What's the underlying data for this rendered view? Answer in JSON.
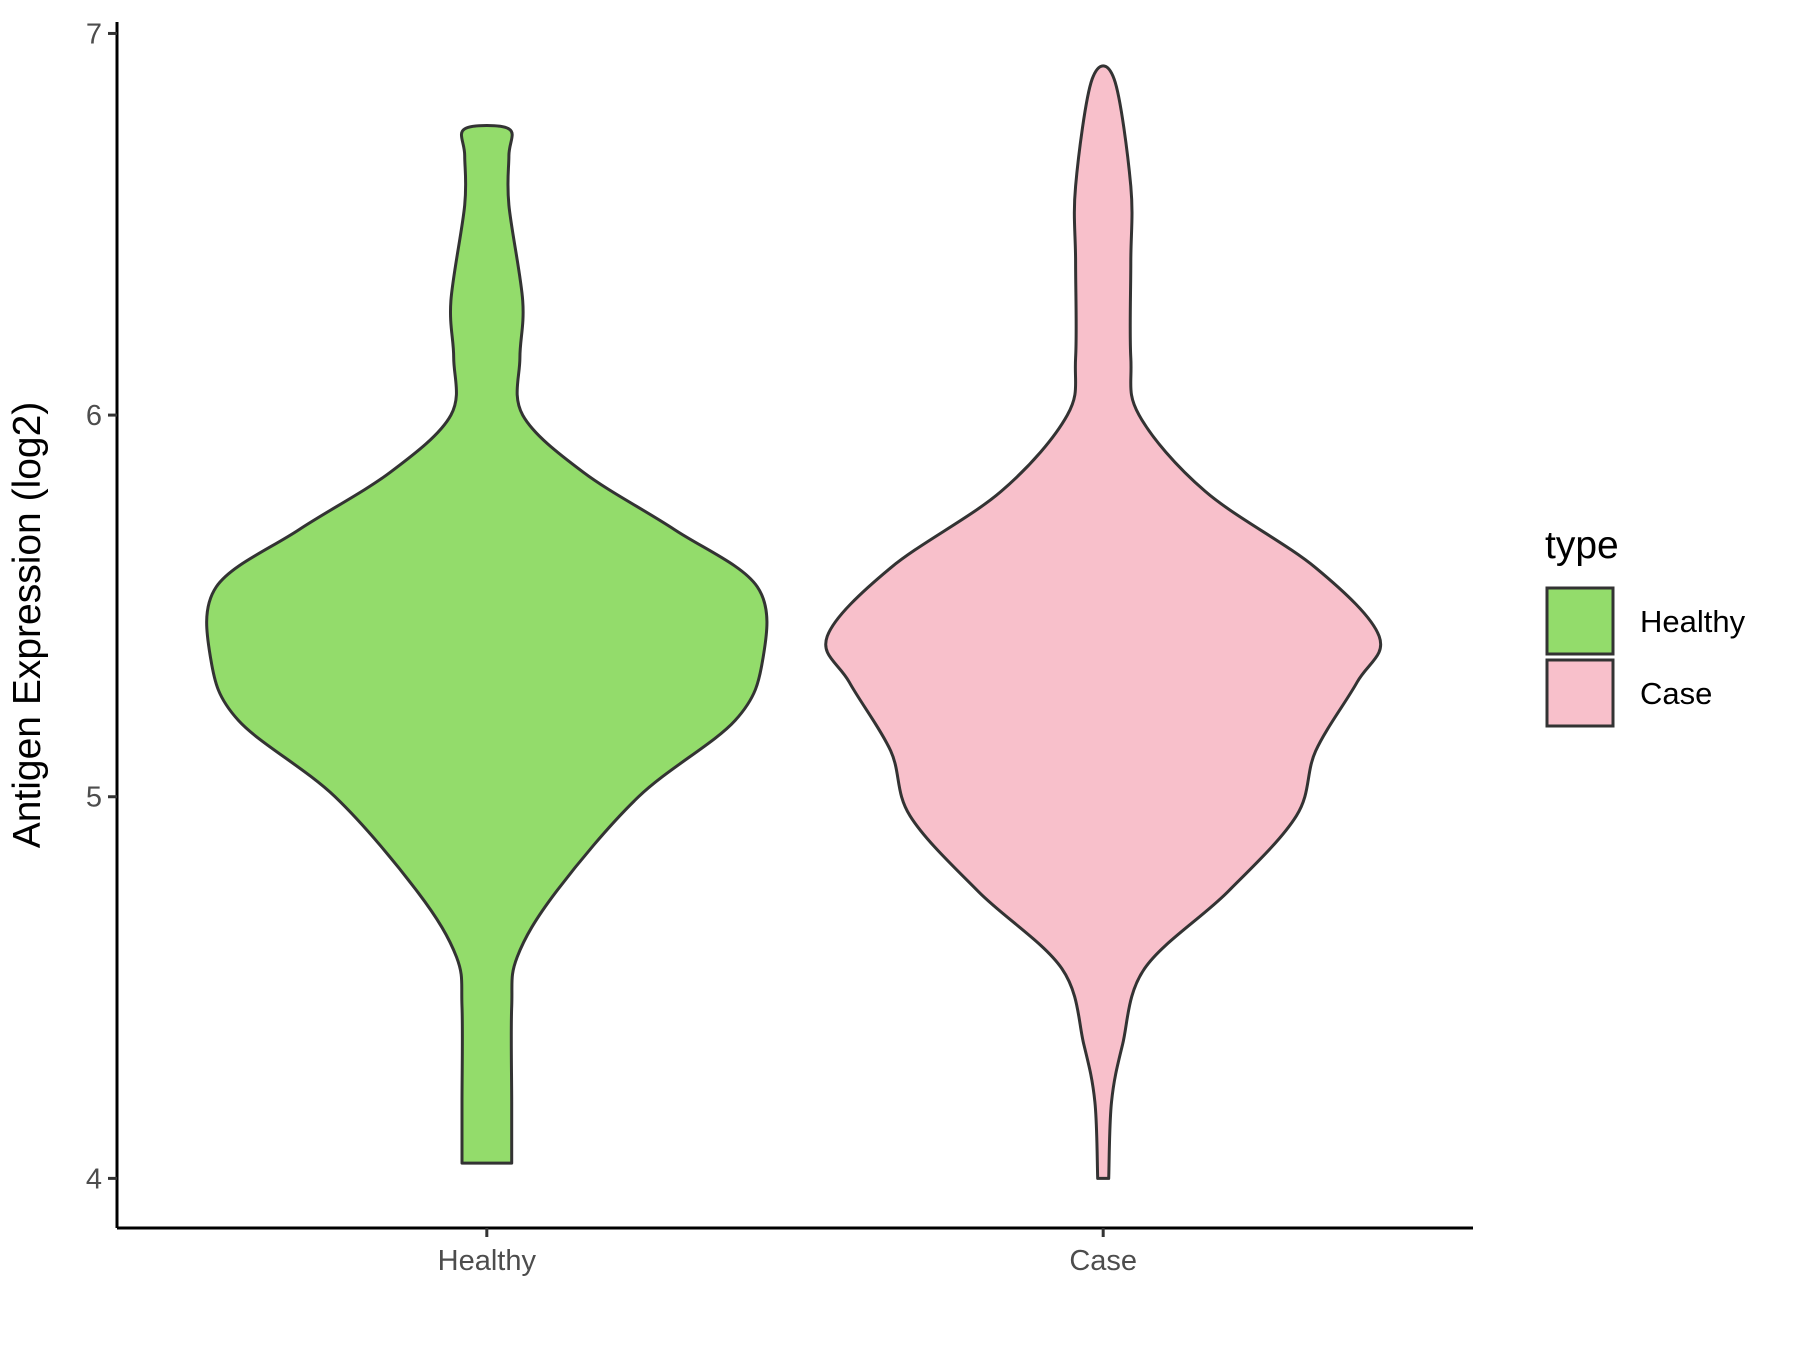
{
  "chart_data": {
    "type": "violin",
    "title": "",
    "xlabel": "",
    "ylabel": "Antigen Expression (log2)",
    "ylim": [
      3.87,
      7.03
    ],
    "yticks": [
      4,
      5,
      6,
      7
    ],
    "ytick_labels": [
      "4",
      "5",
      "6",
      "7"
    ],
    "grid": false,
    "legend": {
      "title": "type",
      "placement": "right",
      "entries": [
        {
          "label": "Healthy",
          "color": "#93DC6B"
        },
        {
          "label": "Case",
          "color": "#F8C0CB"
        }
      ]
    },
    "categories": [
      "Healthy",
      "Case"
    ],
    "series": [
      {
        "name": "Healthy",
        "color": "#93DC6B",
        "density": [
          [
            4.04,
            0.09
          ],
          [
            4.2,
            0.09
          ],
          [
            4.45,
            0.09
          ],
          [
            4.58,
            0.11
          ],
          [
            4.75,
            0.25
          ],
          [
            5.0,
            0.55
          ],
          [
            5.2,
            0.9
          ],
          [
            5.36,
            1.0
          ],
          [
            5.55,
            0.98
          ],
          [
            5.7,
            0.68
          ],
          [
            5.85,
            0.35
          ],
          [
            6.0,
            0.13
          ],
          [
            6.15,
            0.12
          ],
          [
            6.3,
            0.13
          ],
          [
            6.55,
            0.08
          ],
          [
            6.68,
            0.08
          ],
          [
            6.75,
            0.08
          ]
        ]
      },
      {
        "name": "Case",
        "color": "#F8C0CB",
        "density": [
          [
            4.0,
            0.02
          ],
          [
            4.2,
            0.03
          ],
          [
            4.35,
            0.07
          ],
          [
            4.55,
            0.15
          ],
          [
            4.75,
            0.45
          ],
          [
            4.95,
            0.7
          ],
          [
            5.12,
            0.77
          ],
          [
            5.3,
            0.92
          ],
          [
            5.42,
            1.0
          ],
          [
            5.6,
            0.77
          ],
          [
            5.8,
            0.37
          ],
          [
            6.0,
            0.13
          ],
          [
            6.15,
            0.1
          ],
          [
            6.4,
            0.1
          ],
          [
            6.6,
            0.1
          ],
          [
            6.88,
            0.04
          ]
        ]
      }
    ]
  }
}
